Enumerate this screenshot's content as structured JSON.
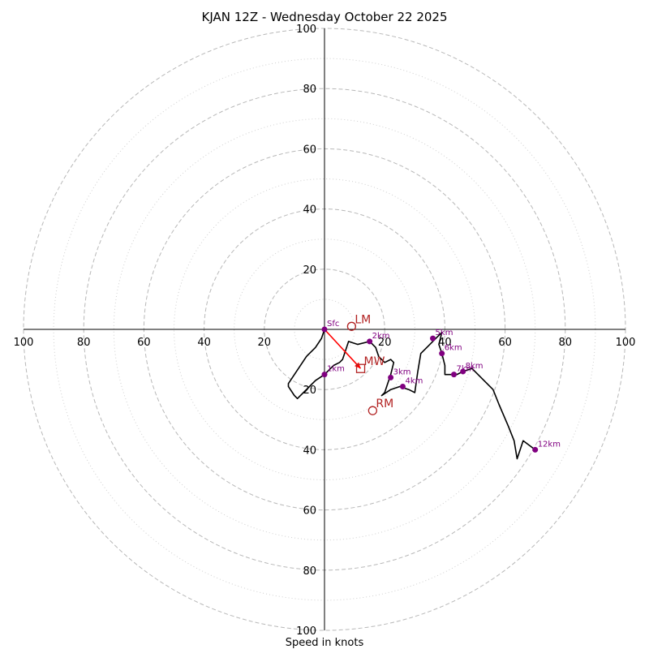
{
  "chart_data": {
    "type": "line",
    "title": "KJAN 12Z - Wednesday October 22 2025",
    "xlabel": "Speed in knots",
    "axis_range": [
      -100,
      100
    ],
    "major_rings": [
      20,
      40,
      60,
      80,
      100
    ],
    "minor_rings": [
      10,
      30,
      50,
      70,
      90
    ],
    "tick_labels": {
      "left": [
        "100",
        "80",
        "60",
        "40",
        "20"
      ],
      "right": [
        "20",
        "40",
        "60",
        "80",
        "100"
      ],
      "top": [
        "100",
        "80",
        "60",
        "40",
        "20"
      ],
      "bottom": [
        "20",
        "40",
        "60",
        "80",
        "100"
      ]
    },
    "hodograph_trace": {
      "color": "#000000",
      "points": [
        [
          0,
          0
        ],
        [
          -1,
          -3
        ],
        [
          -3,
          -6
        ],
        [
          -5,
          -8
        ],
        [
          -6,
          -9
        ],
        [
          -8,
          -12
        ],
        [
          -10,
          -15
        ],
        [
          -12,
          -18
        ],
        [
          -12,
          -19
        ],
        [
          -10,
          -22
        ],
        [
          -9,
          -23
        ],
        [
          -6,
          -20
        ],
        [
          -3,
          -17
        ],
        [
          0,
          -15
        ],
        [
          3,
          -12
        ],
        [
          5,
          -11
        ],
        [
          6,
          -10
        ],
        [
          7,
          -7
        ],
        [
          8,
          -4
        ],
        [
          11,
          -5
        ],
        [
          15,
          -4
        ],
        [
          17,
          -6
        ],
        [
          18,
          -9
        ],
        [
          20,
          -11
        ],
        [
          22,
          -10
        ],
        [
          23,
          -11
        ],
        [
          22,
          -15
        ],
        [
          21,
          -18
        ],
        [
          20,
          -21
        ],
        [
          19,
          -22
        ],
        [
          22,
          -20
        ],
        [
          25,
          -19
        ],
        [
          28,
          -20
        ],
        [
          30,
          -21
        ],
        [
          31,
          -14
        ],
        [
          32,
          -8
        ],
        [
          34,
          -6
        ],
        [
          36,
          -4
        ],
        [
          39,
          -1
        ],
        [
          38,
          -5
        ],
        [
          39,
          -8
        ],
        [
          40,
          -12
        ],
        [
          40,
          -15
        ],
        [
          42,
          -15
        ],
        [
          44,
          -15
        ],
        [
          46,
          -14
        ],
        [
          49,
          -13
        ],
        [
          53,
          -17
        ],
        [
          56,
          -20
        ],
        [
          58,
          -25
        ],
        [
          61,
          -32
        ],
        [
          63,
          -37
        ],
        [
          64,
          -43
        ],
        [
          66,
          -37
        ],
        [
          70,
          -40
        ]
      ]
    },
    "height_markers": [
      {
        "label": "Sfc",
        "x": 0,
        "y": 0
      },
      {
        "label": "1km",
        "x": 0,
        "y": -15
      },
      {
        "label": "2km",
        "x": 15,
        "y": -4
      },
      {
        "label": "3km",
        "x": 22,
        "y": -16
      },
      {
        "label": "4km",
        "x": 26,
        "y": -19
      },
      {
        "label": "5km",
        "x": 36,
        "y": -3
      },
      {
        "label": "6km",
        "x": 39,
        "y": -8
      },
      {
        "label": "7km",
        "x": 43,
        "y": -15
      },
      {
        "label": "8km",
        "x": 46,
        "y": -14
      },
      {
        "label": "12km",
        "x": 70,
        "y": -40
      }
    ],
    "marker_color": "#800080",
    "storm_motion": [
      {
        "label": "LM",
        "x": 9,
        "y": 1,
        "marker": "circle"
      },
      {
        "label": "MW",
        "x": 12,
        "y": -13,
        "marker": "square"
      },
      {
        "label": "RM",
        "x": 16,
        "y": -27,
        "marker": "circle"
      }
    ],
    "motion_color": "#b22222",
    "mean_wind_vector": {
      "from": [
        0,
        0
      ],
      "to": [
        12,
        -13
      ],
      "color": "#ff0000"
    }
  }
}
